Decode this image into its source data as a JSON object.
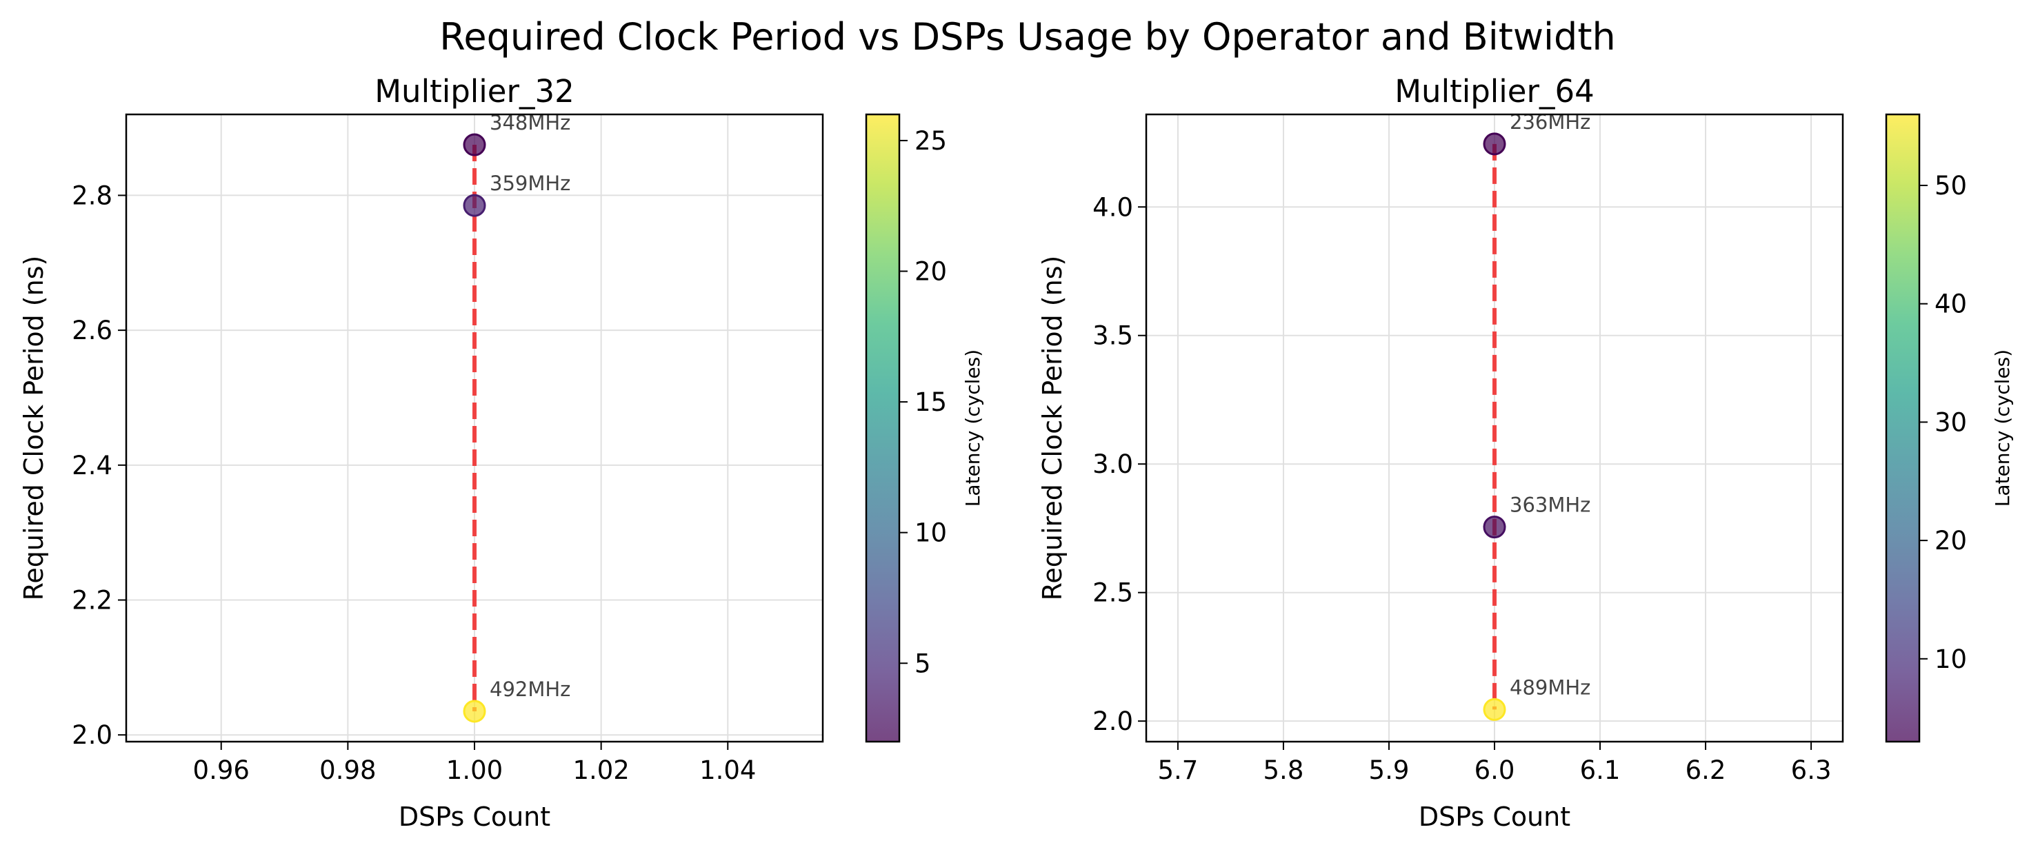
{
  "title": "Required Clock Period vs DSPs Usage by Operator and Bitwidth",
  "colorscale": [
    "#440154",
    "#482878",
    "#3e4989",
    "#31688e",
    "#26828e",
    "#1f9e89",
    "#35b779",
    "#6ece58",
    "#b5de2b",
    "#fde725"
  ],
  "line_color": "#f03030",
  "chart_data": [
    {
      "type": "scatter",
      "title": "Multiplier_32",
      "xlabel": "DSPs Count",
      "ylabel": "Required Clock Period (ns)",
      "xlim": [
        0.945,
        1.055
      ],
      "ylim": [
        1.99,
        2.92
      ],
      "xticks": [
        0.96,
        0.98,
        1.0,
        1.02,
        1.04
      ],
      "xtick_labels": [
        "0.96",
        "0.98",
        "1.00",
        "1.02",
        "1.04"
      ],
      "yticks": [
        2.0,
        2.2,
        2.4,
        2.6,
        2.8
      ],
      "ytick_labels": [
        "2.0",
        "2.2",
        "2.4",
        "2.6",
        "2.8"
      ],
      "grid": true,
      "points": [
        {
          "x": 1.0,
          "y": 2.875,
          "latency": 2,
          "label": "348MHz"
        },
        {
          "x": 1.0,
          "y": 2.785,
          "latency": 4,
          "label": "359MHz"
        },
        {
          "x": 1.0,
          "y": 2.035,
          "latency": 26,
          "label": "492MHz"
        }
      ],
      "colorbar": {
        "label": "Latency (cycles)",
        "range": [
          2,
          26
        ],
        "ticks": [
          5,
          10,
          15,
          20,
          25
        ],
        "tick_labels": [
          "5",
          "10",
          "15",
          "20",
          "25"
        ]
      }
    },
    {
      "type": "scatter",
      "title": "Multiplier_64",
      "xlabel": "DSPs Count",
      "ylabel": "Required Clock Period (ns)",
      "xlim": [
        5.67,
        6.33
      ],
      "ylim": [
        1.92,
        4.36
      ],
      "xticks": [
        5.7,
        5.8,
        5.9,
        6.0,
        6.1,
        6.2,
        6.3
      ],
      "xtick_labels": [
        "5.7",
        "5.8",
        "5.9",
        "6.0",
        "6.1",
        "6.2",
        "6.3"
      ],
      "yticks": [
        2.0,
        2.5,
        3.0,
        3.5,
        4.0
      ],
      "ytick_labels": [
        "2.0",
        "2.5",
        "3.0",
        "3.5",
        "4.0"
      ],
      "grid": true,
      "points": [
        {
          "x": 6.0,
          "y": 4.245,
          "latency": 3,
          "label": "236MHz"
        },
        {
          "x": 6.0,
          "y": 2.755,
          "latency": 5,
          "label": "363MHz"
        },
        {
          "x": 6.0,
          "y": 2.045,
          "latency": 56,
          "label": "489MHz"
        }
      ],
      "colorbar": {
        "label": "Latency (cycles)",
        "range": [
          3,
          56
        ],
        "ticks": [
          10,
          20,
          30,
          40,
          50
        ],
        "tick_labels": [
          "10",
          "20",
          "30",
          "40",
          "50"
        ]
      }
    }
  ]
}
